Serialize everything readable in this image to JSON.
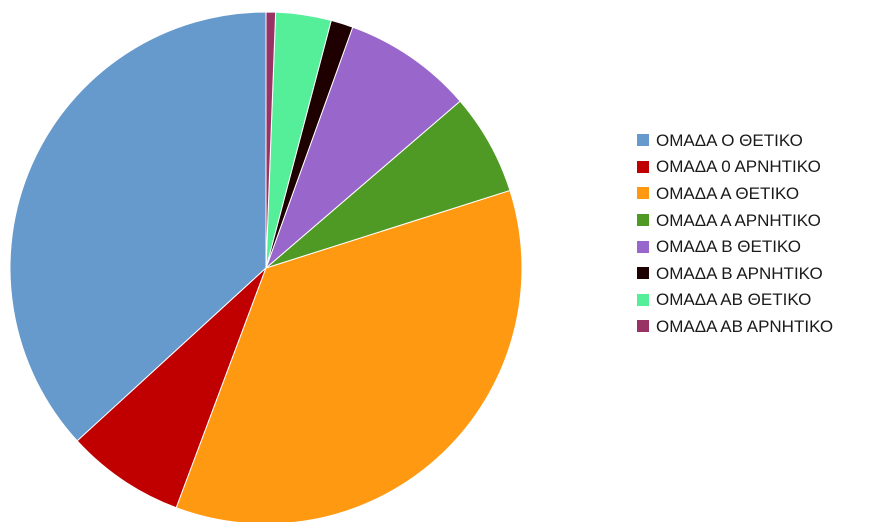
{
  "chart_data": {
    "type": "pie",
    "title": "",
    "legend_position": "right",
    "categories": [
      "ΟΜΑΔΑ Ο ΘΕΤΙΚΟ",
      "ΟΜΑΔΑ 0 ΑΡΝΗΤΙΚΟ",
      "ΟΜΑΔΑ Α ΘΕΤΙΚΟ",
      "ΟΜΑΔΑ Α ΑΡΝΗΤΙΚΟ",
      "ΟΜΑΔΑ Β ΘΕΤΙΚΟ",
      "ΟΜΑΔΑ Β ΑΡΝΗΤΙΚΟ",
      "ΟΜΑΔΑ ΑΒ ΘΕΤΙΚΟ",
      "ΟΜΑΔΑ ΑΒ ΑΡΝΗΤΙΚΟ"
    ],
    "values": [
      36.8,
      7.5,
      35.6,
      6.4,
      8.2,
      1.4,
      3.5,
      0.6
    ],
    "unit": "percent",
    "colors": [
      "#6699cc",
      "#c00000",
      "#ff9912",
      "#4e9a24",
      "#9966cc",
      "#1f0000",
      "#55ee99",
      "#993366"
    ],
    "start_angle_deg": 0,
    "direction": "counterclockwise"
  }
}
